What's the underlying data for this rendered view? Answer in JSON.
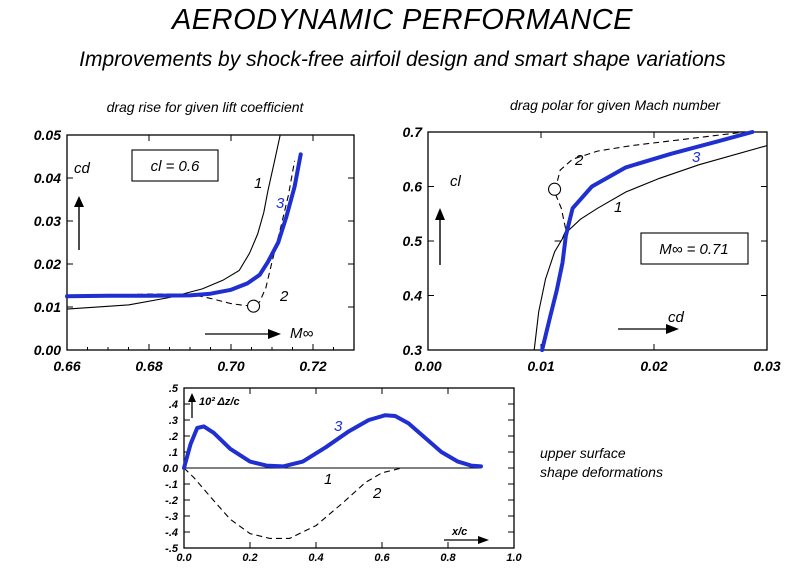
{
  "header": {
    "title": "AERODYNAMIC PERFORMANCE",
    "subtitle": "Improvements by shock-free airfoil design and smart shape variations"
  },
  "chart_data": [
    {
      "id": "drag-rise",
      "type": "line",
      "title": "drag rise for given lift coefficient",
      "xlabel": "M∞",
      "ylabel": "cd",
      "xlim": [
        0.66,
        0.73
      ],
      "ylim": [
        0.0,
        0.05
      ],
      "xticks": [
        "0.66",
        "0.68",
        "0.70",
        "0.72"
      ],
      "yticks": [
        "0.00",
        "0.01",
        "0.02",
        "0.03",
        "0.04",
        "0.05"
      ],
      "annotation": "cl = 0.6",
      "series": [
        {
          "name": "1",
          "style": "thin-solid",
          "x": [
            0.66,
            0.675,
            0.685,
            0.693,
            0.698,
            0.702,
            0.7045,
            0.7065,
            0.708,
            0.709,
            0.7105,
            0.712
          ],
          "y": [
            0.0095,
            0.0105,
            0.0122,
            0.0142,
            0.0162,
            0.0185,
            0.0225,
            0.027,
            0.032,
            0.037,
            0.0435,
            0.05
          ]
        },
        {
          "name": "2",
          "style": "dashed",
          "x": [
            0.66,
            0.68,
            0.69,
            0.695,
            0.7,
            0.703,
            0.7055,
            0.707,
            0.7085,
            0.71,
            0.712,
            0.714,
            0.7155
          ],
          "y": [
            0.0125,
            0.013,
            0.013,
            0.012,
            0.0108,
            0.0104,
            0.0102,
            0.0112,
            0.0145,
            0.0205,
            0.028,
            0.036,
            0.044
          ]
        },
        {
          "name": "3",
          "style": "thick-blue",
          "x": [
            0.66,
            0.67,
            0.68,
            0.69,
            0.695,
            0.7,
            0.704,
            0.707,
            0.709,
            0.7115,
            0.7135,
            0.7155,
            0.717
          ],
          "y": [
            0.0125,
            0.0126,
            0.0126,
            0.0127,
            0.0131,
            0.014,
            0.0155,
            0.0175,
            0.0205,
            0.025,
            0.031,
            0.038,
            0.0455
          ]
        }
      ],
      "markers": [
        {
          "label": "2",
          "x": 0.7055,
          "y": 0.0102
        }
      ],
      "curve_labels": [
        "1",
        "2",
        "3"
      ]
    },
    {
      "id": "drag-polar",
      "type": "line",
      "title": "drag polar for given Mach number",
      "xlabel": "cd",
      "ylabel": "cl",
      "xlim": [
        0.0,
        0.03
      ],
      "ylim": [
        0.3,
        0.7
      ],
      "xticks": [
        "0.00",
        "0.01",
        "0.02",
        "0.03"
      ],
      "yticks": [
        "0.3",
        "0.4",
        "0.5",
        "0.6",
        "0.7"
      ],
      "annotation": "M∞ = 0.71",
      "series": [
        {
          "name": "1",
          "style": "thin-solid",
          "x": [
            0.0094,
            0.0098,
            0.0104,
            0.0112,
            0.0122,
            0.0135,
            0.015,
            0.0175,
            0.0205,
            0.024,
            0.03
          ],
          "y": [
            0.3,
            0.37,
            0.43,
            0.48,
            0.515,
            0.54,
            0.56,
            0.59,
            0.615,
            0.64,
            0.675
          ]
        },
        {
          "name": "2",
          "style": "dashed",
          "x": [
            0.0112,
            0.0118,
            0.0122,
            0.0118,
            0.0112,
            0.0117,
            0.0128,
            0.015,
            0.018,
            0.022,
            0.028
          ],
          "y": [
            0.5,
            0.5,
            0.52,
            0.56,
            0.59,
            0.63,
            0.65,
            0.665,
            0.675,
            0.685,
            0.7
          ]
        },
        {
          "name": "3",
          "style": "thick-blue",
          "x": [
            0.0101,
            0.0108,
            0.0114,
            0.0119,
            0.0122,
            0.0128,
            0.0145,
            0.0175,
            0.0215,
            0.0255,
            0.0287
          ],
          "y": [
            0.3,
            0.36,
            0.41,
            0.46,
            0.51,
            0.56,
            0.6,
            0.635,
            0.66,
            0.682,
            0.7
          ]
        }
      ],
      "markers": [
        {
          "label": "2",
          "x": 0.0112,
          "y": 0.595
        }
      ],
      "curve_labels": [
        "1",
        "2",
        "3"
      ]
    },
    {
      "id": "shape-deformations",
      "type": "line",
      "title": "upper surface shape deformations",
      "title_lines": [
        "upper surface",
        "shape  deformations"
      ],
      "xlabel": "x/c",
      "ylabel": "10² Δz/c",
      "xlim": [
        0.0,
        1.0
      ],
      "ylim": [
        -0.5,
        0.5
      ],
      "xticks": [
        "0.0",
        "0.2",
        "0.4",
        "0.6",
        "0.8",
        "1.0"
      ],
      "yticks": [
        ".5",
        ".4",
        ".3",
        ".2",
        ".1",
        "0.0",
        "-.1",
        "-.2",
        "-.3",
        "-.4",
        "-.5"
      ],
      "series": [
        {
          "name": "1",
          "style": "thin-solid",
          "x": [
            0.0,
            0.9
          ],
          "y": [
            0.0,
            0.0
          ]
        },
        {
          "name": "2",
          "style": "dashed",
          "x": [
            0.0,
            0.03,
            0.08,
            0.14,
            0.2,
            0.26,
            0.32,
            0.4,
            0.48,
            0.55,
            0.6,
            0.66
          ],
          "y": [
            0.0,
            -0.06,
            -0.18,
            -0.32,
            -0.41,
            -0.44,
            -0.44,
            -0.36,
            -0.22,
            -0.09,
            -0.03,
            0.0
          ]
        },
        {
          "name": "3",
          "style": "thick-blue",
          "x": [
            0.0,
            0.02,
            0.04,
            0.06,
            0.09,
            0.14,
            0.2,
            0.25,
            0.3,
            0.36,
            0.43,
            0.5,
            0.56,
            0.61,
            0.64,
            0.68,
            0.73,
            0.78,
            0.83,
            0.87,
            0.9
          ],
          "y": [
            0.0,
            0.15,
            0.25,
            0.26,
            0.22,
            0.12,
            0.04,
            0.015,
            0.01,
            0.04,
            0.13,
            0.23,
            0.3,
            0.33,
            0.325,
            0.28,
            0.19,
            0.1,
            0.04,
            0.015,
            0.01
          ]
        }
      ],
      "curve_labels": [
        "1",
        "2",
        "3"
      ]
    }
  ]
}
